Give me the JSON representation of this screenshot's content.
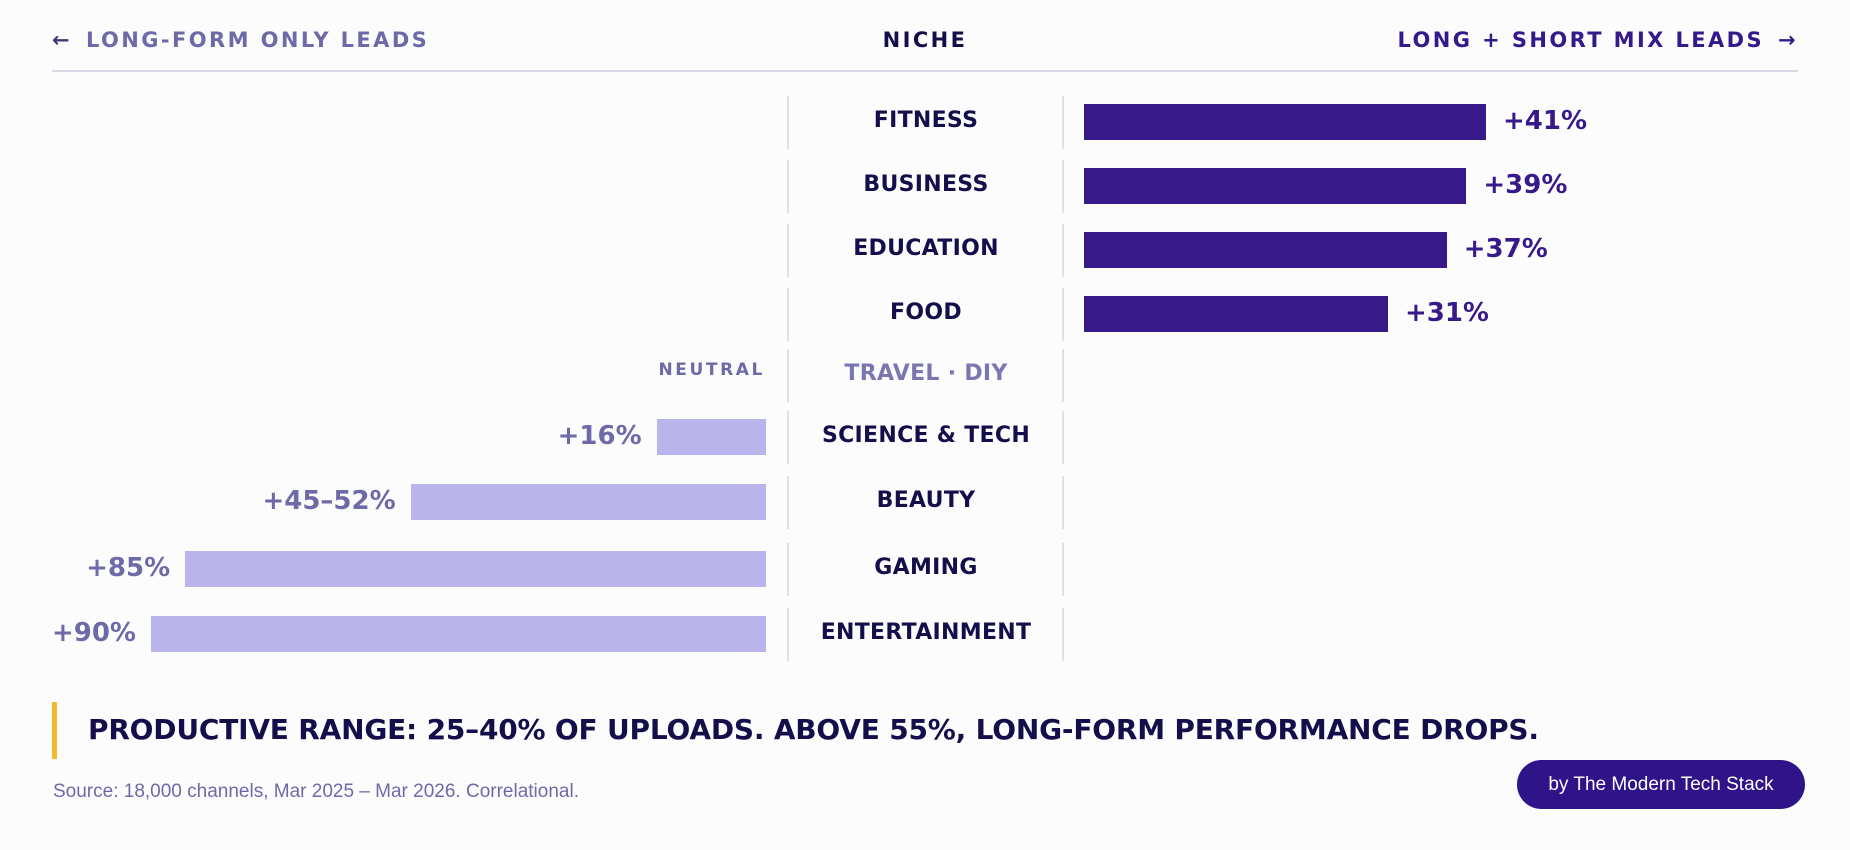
{
  "header": {
    "left_arrow": "←",
    "left_label": "LONG-FORM ONLY LEADS",
    "center_label": "NICHE",
    "right_label": "LONG + SHORT MIX LEADS",
    "right_arrow": "→"
  },
  "chart_data": {
    "type": "bar",
    "orientation": "horizontal-diverging",
    "left_direction": "LONG-FORM ONLY LEADS",
    "right_direction": "LONG + SHORT MIX LEADS",
    "categories": [
      "FITNESS",
      "BUSINESS",
      "EDUCATION",
      "FOOD",
      "TRAVEL · DIY",
      "SCIENCE & TECH",
      "BEAUTY",
      "GAMING",
      "ENTERTAINMENT"
    ],
    "rows": [
      {
        "category": "FITNESS",
        "side": "right",
        "value": 41,
        "label": "+41%"
      },
      {
        "category": "BUSINESS",
        "side": "right",
        "value": 39,
        "label": "+39%"
      },
      {
        "category": "EDUCATION",
        "side": "right",
        "value": 37,
        "label": "+37%"
      },
      {
        "category": "FOOD",
        "side": "right",
        "value": 31,
        "label": "+31%"
      },
      {
        "category": "TRAVEL · DIY",
        "side": "neutral",
        "value": 0,
        "label": "NEUTRAL"
      },
      {
        "category": "SCIENCE & TECH",
        "side": "left",
        "value": 16,
        "label": "+16%"
      },
      {
        "category": "BEAUTY",
        "side": "left",
        "value": 52,
        "label": "+45–52%"
      },
      {
        "category": "GAMING",
        "side": "left",
        "value": 85,
        "label": "+85%"
      },
      {
        "category": "ENTERTAINMENT",
        "side": "left",
        "value": 90,
        "label": "+90%"
      }
    ],
    "colors": {
      "right": "#37198a",
      "left": "#b9b4ec",
      "accent": "#f5b92d"
    }
  },
  "callout": "PRODUCTIVE RANGE: 25–40% OF UPLOADS. ABOVE 55%, LONG-FORM PERFORMANCE DROPS.",
  "source": "Source: 18,000 channels, Mar 2025 – Mar 2026. Correlational.",
  "credit": "by The Modern Tech Stack"
}
